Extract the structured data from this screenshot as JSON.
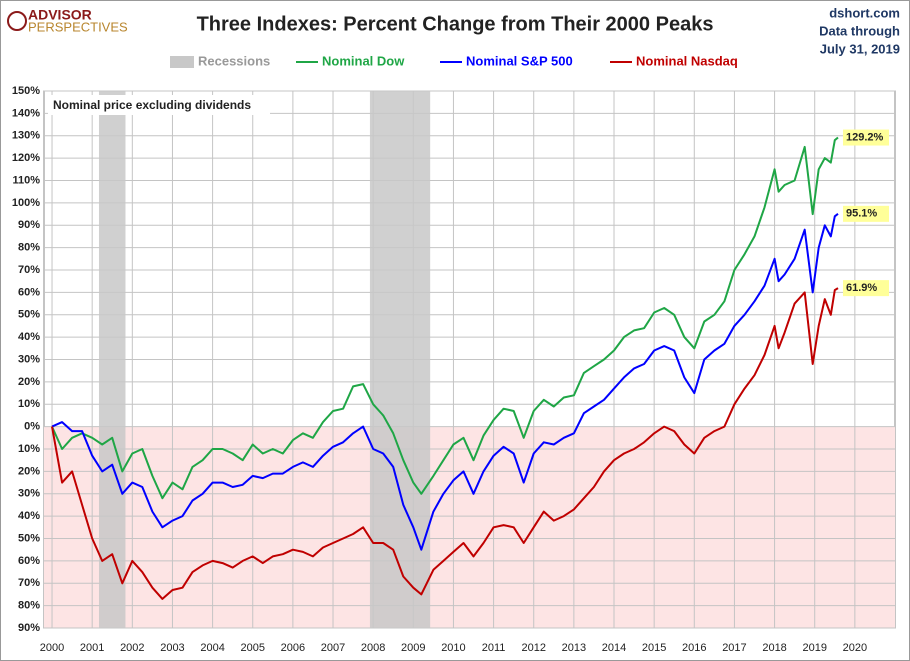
{
  "chart_data": {
    "type": "line",
    "title": "Three Indexes: Percent Change from Their 2000 Peaks",
    "logo": [
      "ADVISOR",
      "PERSPECTIVES"
    ],
    "source": [
      "dshort.com",
      "Data through",
      "July 31, 2019"
    ],
    "annotation": "Nominal price excluding dividends",
    "recessions": {
      "name": "Recessions",
      "color": "#c8c8c8",
      "spans": [
        [
          2001.17,
          2001.83
        ],
        [
          2007.92,
          2009.42
        ]
      ]
    },
    "x": [
      2000,
      2000.25,
      2000.5,
      2000.75,
      2001,
      2001.25,
      2001.5,
      2001.75,
      2002,
      2002.25,
      2002.5,
      2002.75,
      2003,
      2003.25,
      2003.5,
      2003.75,
      2004,
      2004.25,
      2004.5,
      2004.75,
      2005,
      2005.25,
      2005.5,
      2005.75,
      2006,
      2006.25,
      2006.5,
      2006.75,
      2007,
      2007.25,
      2007.5,
      2007.75,
      2008,
      2008.25,
      2008.5,
      2008.75,
      2009,
      2009.2,
      2009.5,
      2009.75,
      2010,
      2010.25,
      2010.5,
      2010.75,
      2011,
      2011.25,
      2011.5,
      2011.75,
      2012,
      2012.25,
      2012.5,
      2012.75,
      2013,
      2013.25,
      2013.5,
      2013.75,
      2014,
      2014.25,
      2014.5,
      2014.75,
      2015,
      2015.25,
      2015.5,
      2015.75,
      2016,
      2016.25,
      2016.5,
      2016.75,
      2017,
      2017.25,
      2017.5,
      2017.75,
      2018,
      2018.1,
      2018.25,
      2018.5,
      2018.75,
      2018.95,
      2019.1,
      2019.25,
      2019.4,
      2019.5,
      2019.58
    ],
    "series": [
      {
        "name": "Nominal Dow",
        "color": "#1fa646",
        "values": [
          0,
          -10,
          -5,
          -3,
          -5,
          -8,
          -5,
          -20,
          -12,
          -10,
          -22,
          -32,
          -25,
          -28,
          -18,
          -15,
          -10,
          -10,
          -12,
          -15,
          -8,
          -12,
          -10,
          -12,
          -6,
          -3,
          -5,
          2,
          7,
          8,
          18,
          19,
          10,
          5,
          -3,
          -15,
          -25,
          -30,
          -22,
          -15,
          -8,
          -5,
          -15,
          -4,
          3,
          8,
          7,
          -5,
          7,
          12,
          9,
          13,
          14,
          24,
          27,
          30,
          34,
          40,
          43,
          44,
          51,
          53,
          50,
          40,
          35,
          47,
          50,
          56,
          70,
          77,
          85,
          98,
          115,
          105,
          108,
          110,
          125,
          95,
          115,
          120,
          118,
          128,
          129.2
        ],
        "value_labels": [
          null,
          null,
          null,
          null,
          null,
          null,
          null,
          null,
          null,
          null,
          null,
          null,
          null,
          null,
          null,
          null,
          null,
          null,
          null,
          null,
          null,
          null,
          null,
          null,
          null,
          null,
          null,
          null,
          null,
          null,
          null,
          null,
          null,
          null,
          null,
          null,
          null,
          null,
          null,
          null,
          null,
          null,
          null,
          null,
          null,
          null,
          null,
          null,
          null,
          null,
          null,
          null,
          null,
          null,
          null,
          null,
          null,
          null,
          null,
          null,
          null,
          null,
          null,
          null,
          null,
          null,
          null,
          null,
          null,
          null,
          null,
          null,
          null,
          null,
          null,
          null,
          null,
          null,
          null,
          null,
          null,
          null,
          "129.2%"
        ]
      },
      {
        "name": "Nominal S&P 500",
        "color": "#0000ff",
        "values": [
          0,
          2,
          -2,
          -2,
          -13,
          -20,
          -17,
          -30,
          -25,
          -27,
          -38,
          -45,
          -42,
          -40,
          -33,
          -30,
          -25,
          -25,
          -27,
          -26,
          -22,
          -23,
          -21,
          -21,
          -18,
          -16,
          -18,
          -13,
          -9,
          -7,
          -3,
          0,
          -10,
          -12,
          -18,
          -35,
          -45,
          -55,
          -38,
          -30,
          -24,
          -20,
          -30,
          -20,
          -13,
          -9,
          -12,
          -25,
          -12,
          -7,
          -8,
          -5,
          -3,
          6,
          9,
          12,
          17,
          22,
          26,
          28,
          34,
          36,
          34,
          22,
          15,
          30,
          34,
          37,
          45,
          50,
          56,
          63,
          75,
          65,
          68,
          75,
          88,
          60,
          80,
          90,
          85,
          94,
          95.1
        ],
        "value_labels": [
          null,
          null,
          null,
          null,
          null,
          null,
          null,
          null,
          null,
          null,
          null,
          null,
          null,
          null,
          null,
          null,
          null,
          null,
          null,
          null,
          null,
          null,
          null,
          null,
          null,
          null,
          null,
          null,
          null,
          null,
          null,
          null,
          null,
          null,
          null,
          null,
          null,
          null,
          null,
          null,
          null,
          null,
          null,
          null,
          null,
          null,
          null,
          null,
          null,
          null,
          null,
          null,
          null,
          null,
          null,
          null,
          null,
          null,
          null,
          null,
          null,
          null,
          null,
          null,
          null,
          null,
          null,
          null,
          null,
          null,
          null,
          null,
          null,
          null,
          null,
          null,
          null,
          null,
          null,
          null,
          null,
          null,
          "95.1%"
        ]
      },
      {
        "name": "Nominal Nasdaq",
        "color": "#c00000",
        "values": [
          0,
          -25,
          -20,
          -35,
          -50,
          -60,
          -57,
          -70,
          -60,
          -65,
          -72,
          -77,
          -73,
          -72,
          -65,
          -62,
          -60,
          -61,
          -63,
          -60,
          -58,
          -61,
          -58,
          -57,
          -55,
          -56,
          -58,
          -54,
          -52,
          -50,
          -48,
          -45,
          -52,
          -52,
          -55,
          -67,
          -72,
          -75,
          -64,
          -60,
          -56,
          -52,
          -58,
          -52,
          -45,
          -44,
          -45,
          -52,
          -45,
          -38,
          -42,
          -40,
          -37,
          -32,
          -27,
          -20,
          -15,
          -12,
          -10,
          -7,
          -3,
          0,
          -2,
          -8,
          -12,
          -5,
          -2,
          0,
          10,
          17,
          23,
          32,
          45,
          35,
          42,
          55,
          60,
          28,
          45,
          57,
          50,
          61,
          61.9
        ],
        "value_labels": [
          null,
          null,
          null,
          null,
          null,
          null,
          null,
          null,
          null,
          null,
          null,
          null,
          null,
          null,
          null,
          null,
          null,
          null,
          null,
          null,
          null,
          null,
          null,
          null,
          null,
          null,
          null,
          null,
          null,
          null,
          null,
          null,
          null,
          null,
          null,
          null,
          null,
          null,
          null,
          null,
          null,
          null,
          null,
          null,
          null,
          null,
          null,
          null,
          null,
          null,
          null,
          null,
          null,
          null,
          null,
          null,
          null,
          null,
          null,
          null,
          null,
          null,
          null,
          null,
          null,
          null,
          null,
          null,
          null,
          null,
          null,
          null,
          null,
          null,
          null,
          null,
          null,
          null,
          null,
          null,
          null,
          null,
          "61.9%"
        ]
      }
    ],
    "xlim": [
      1999.8,
      2021
    ],
    "xticks": [
      2000,
      2001,
      2002,
      2003,
      2004,
      2005,
      2006,
      2007,
      2008,
      2009,
      2010,
      2011,
      2012,
      2013,
      2014,
      2015,
      2016,
      2017,
      2018,
      2019,
      2020
    ],
    "ylim": [
      -90,
      150
    ],
    "yticks": [
      {
        "value": 150,
        "label": "150%"
      },
      {
        "value": 140,
        "label": "140%"
      },
      {
        "value": 130,
        "label": "130%"
      },
      {
        "value": 120,
        "label": "120%"
      },
      {
        "value": 110,
        "label": "110%"
      },
      {
        "value": 100,
        "label": "100%"
      },
      {
        "value": 90,
        "label": "90%"
      },
      {
        "value": 80,
        "label": "80%"
      },
      {
        "value": 70,
        "label": "70%"
      },
      {
        "value": 60,
        "label": "60%"
      },
      {
        "value": 50,
        "label": "50%"
      },
      {
        "value": 40,
        "label": "40%"
      },
      {
        "value": 30,
        "label": "30%"
      },
      {
        "value": 20,
        "label": "20%"
      },
      {
        "value": 10,
        "label": "10%"
      },
      {
        "value": 0,
        "label": "0%"
      },
      {
        "value": -10,
        "label": "10%"
      },
      {
        "value": -20,
        "label": "20%"
      },
      {
        "value": -30,
        "label": "30%"
      },
      {
        "value": -40,
        "label": "40%"
      },
      {
        "value": -50,
        "label": "50%"
      },
      {
        "value": -60,
        "label": "60%"
      },
      {
        "value": -70,
        "label": "70%"
      },
      {
        "value": -80,
        "label": "80%"
      },
      {
        "value": -90,
        "label": "90%"
      }
    ],
    "grid": true,
    "negative_fill": "#fde4e4"
  }
}
